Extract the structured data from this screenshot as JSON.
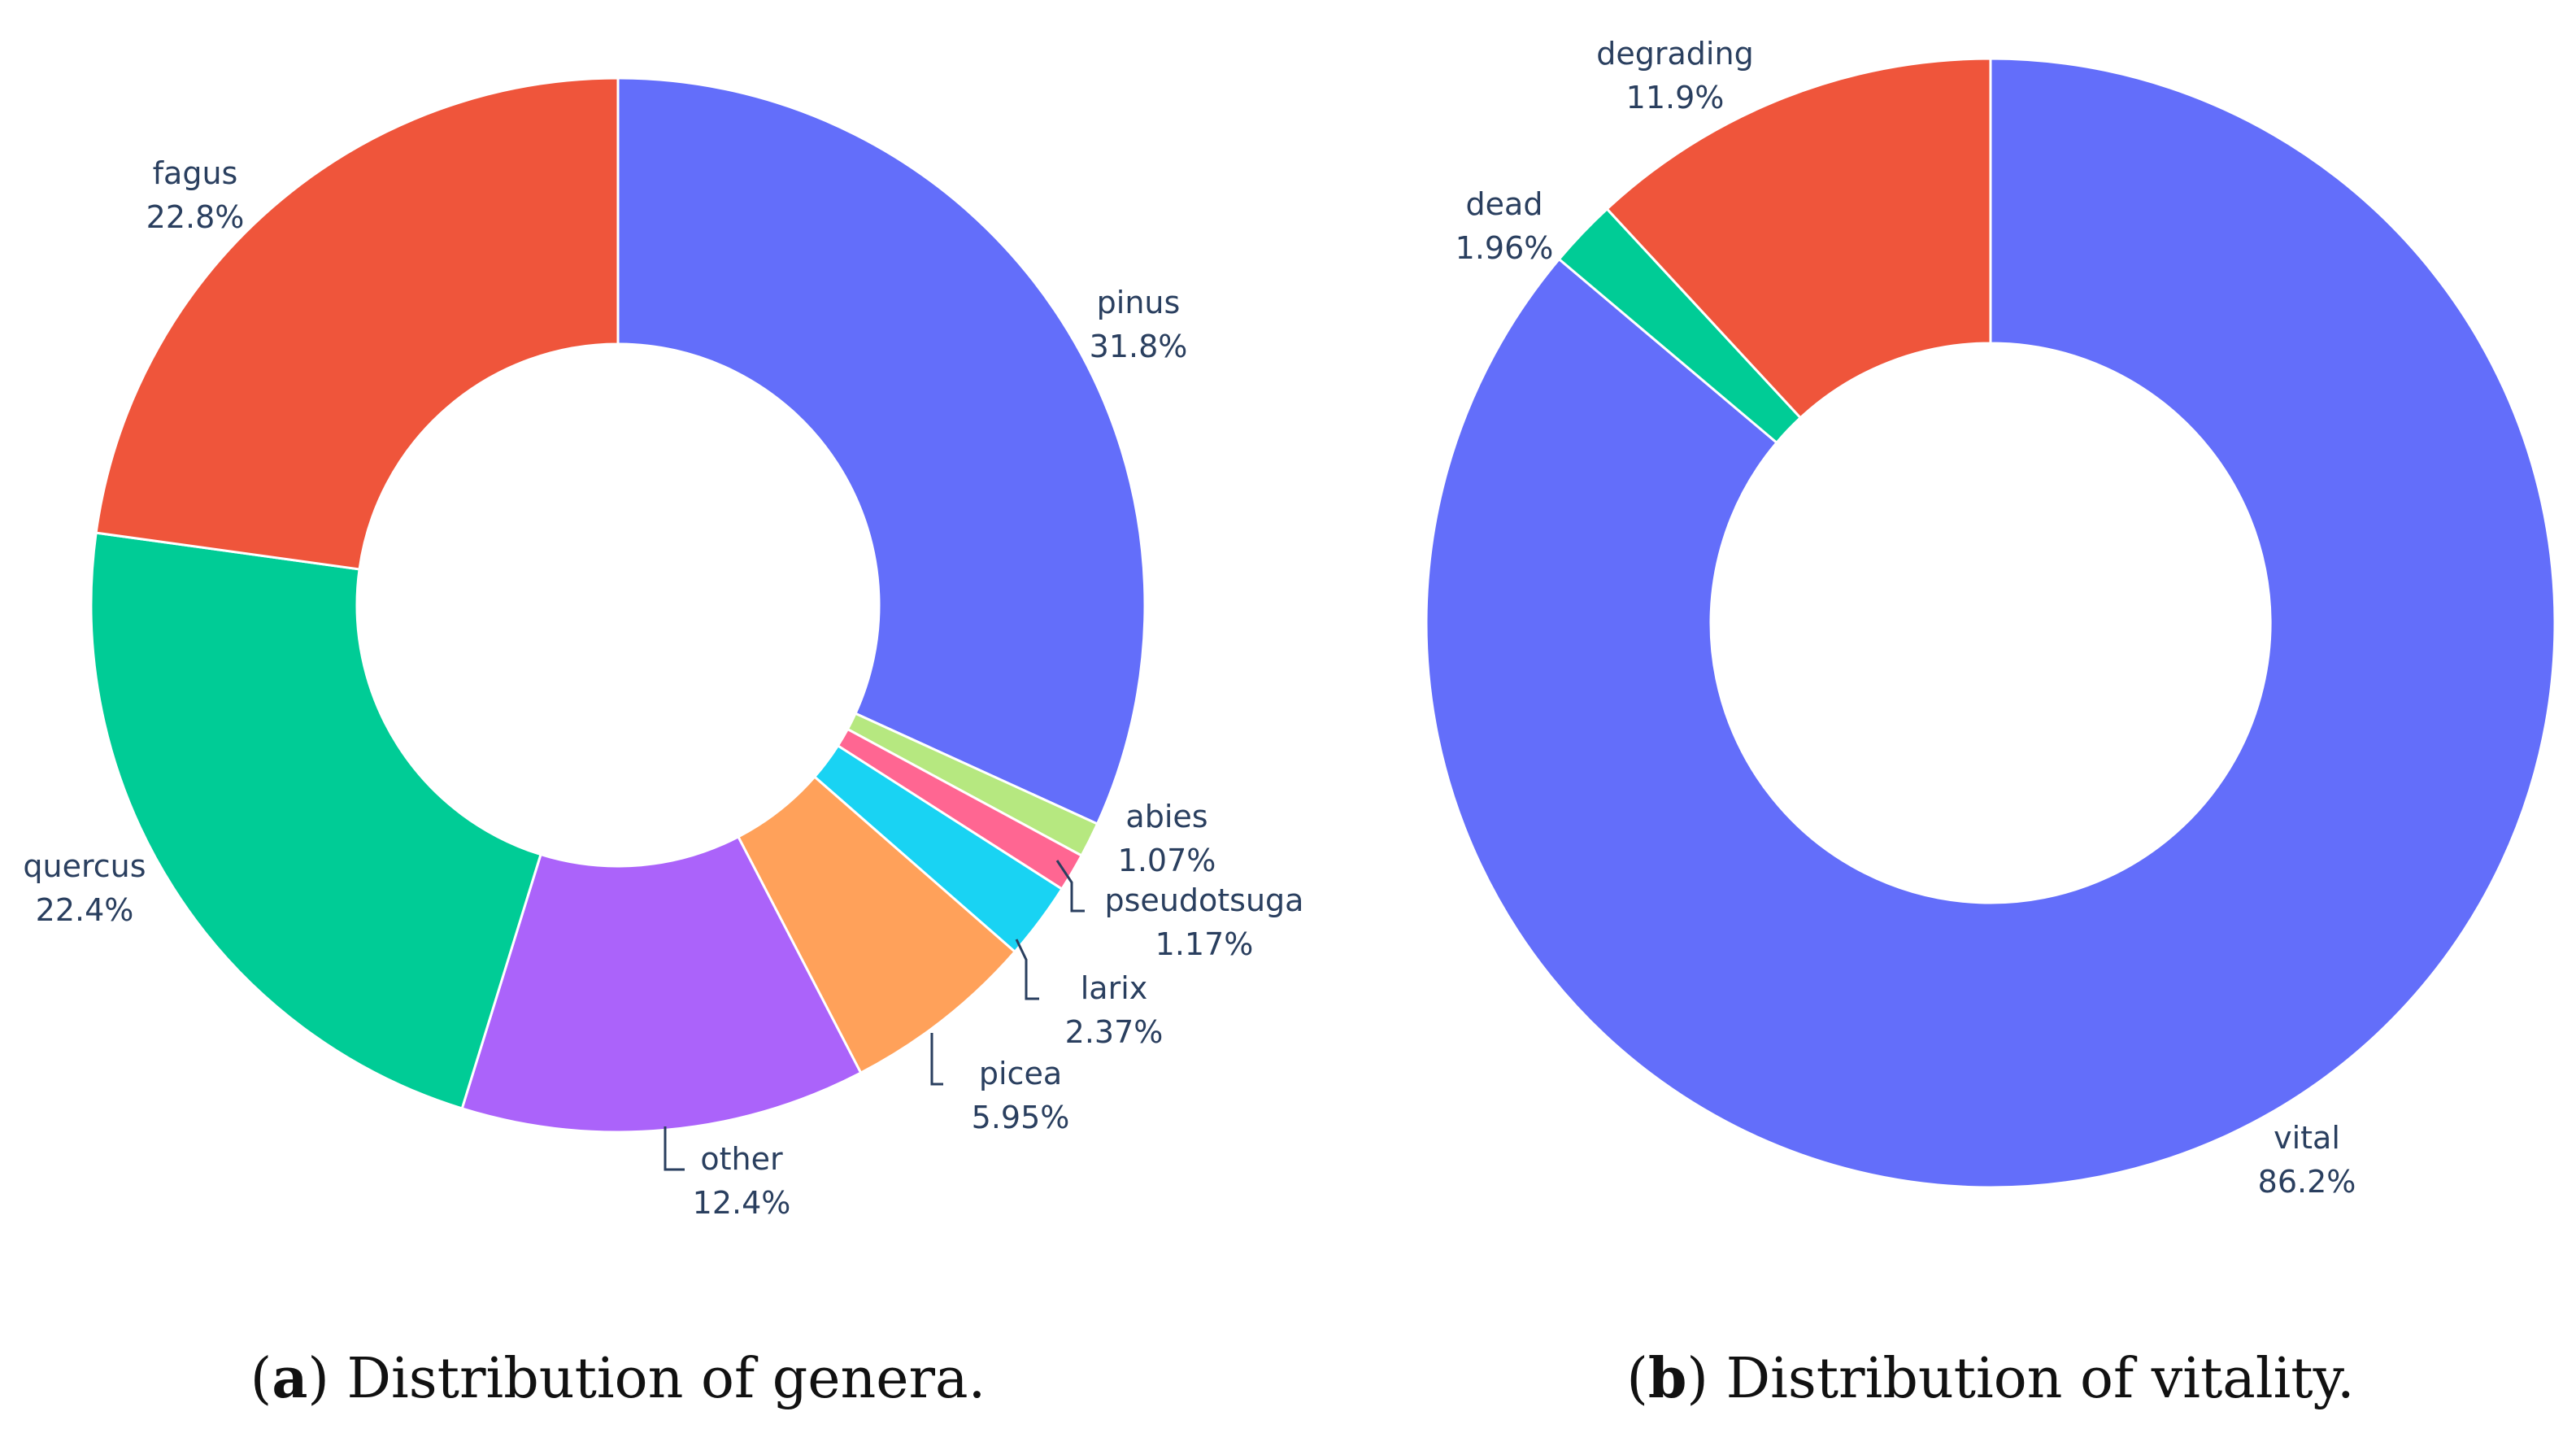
{
  "chart_data": [
    {
      "type": "pie",
      "hole": true,
      "caption": {
        "letter": "a",
        "text": " Distribution of genera."
      },
      "slices": [
        {
          "label": "pinus",
          "percent_text": "31.8%",
          "value": 31.8,
          "color": "#636efa"
        },
        {
          "label": "abies",
          "percent_text": "1.07%",
          "value": 1.07,
          "color": "#b6e880"
        },
        {
          "label": "pseudotsuga",
          "percent_text": "1.17%",
          "value": 1.17,
          "color": "#ff6692"
        },
        {
          "label": "larix",
          "percent_text": "2.37%",
          "value": 2.37,
          "color": "#19d3f3"
        },
        {
          "label": "picea",
          "percent_text": "5.95%",
          "value": 5.95,
          "color": "#ffa15a"
        },
        {
          "label": "other",
          "percent_text": "12.4%",
          "value": 12.4,
          "color": "#ab63fa"
        },
        {
          "label": "quercus",
          "percent_text": "22.4%",
          "value": 22.4,
          "color": "#00cc96"
        },
        {
          "label": "fagus",
          "percent_text": "22.8%",
          "value": 22.8,
          "color": "#ef553b"
        }
      ]
    },
    {
      "type": "pie",
      "hole": true,
      "caption": {
        "letter": "b",
        "text": " Distribution of vitality."
      },
      "slices": [
        {
          "label": "vital",
          "percent_text": "86.2%",
          "value": 86.2,
          "color": "#636efa"
        },
        {
          "label": "dead",
          "percent_text": "1.96%",
          "value": 1.96,
          "color": "#00cc96"
        },
        {
          "label": "degrading",
          "percent_text": "11.9%",
          "value": 11.9,
          "color": "#ef553b"
        }
      ]
    }
  ]
}
